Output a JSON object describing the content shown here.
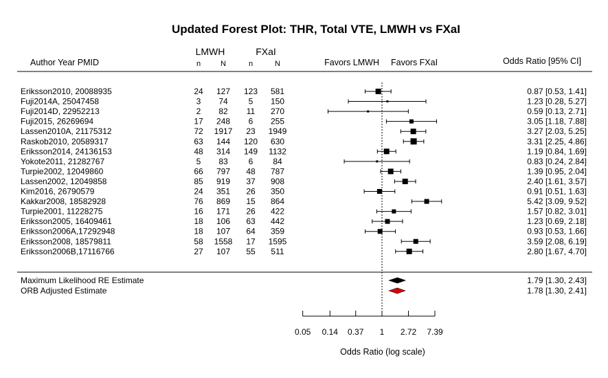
{
  "chart_data": {
    "type": "forest",
    "title": "Updated Forest Plot: THR, Total VTE, LMWH vs FXaI",
    "header": {
      "study_col": "Author Year PMID",
      "group1": "LMWH",
      "group2": "FXaI",
      "n_label": "n",
      "N_label": "N",
      "favors_left": "Favors LMWH",
      "favors_right": "Favors FXaI",
      "effect_col": "Odds Ratio [95% CI]"
    },
    "x_scale": "log",
    "xlabel": "Odds Ratio (log scale)",
    "x_ticks": [
      {
        "value": 0.05,
        "label": "0.05"
      },
      {
        "value": 0.14,
        "label": "0.14"
      },
      {
        "value": 0.37,
        "label": "0.37"
      },
      {
        "value": 1,
        "label": "1"
      },
      {
        "value": 2.72,
        "label": "2.72"
      },
      {
        "value": 7.39,
        "label": "7.39"
      }
    ],
    "reference_line": 1,
    "studies": [
      {
        "label": "Eriksson2010, 20088935",
        "n1": "24",
        "N1": "127",
        "n2": "123",
        "N2": "581",
        "or": 0.87,
        "lo": 0.53,
        "hi": 1.41,
        "ci_text": "0.87 [0.53, 1.41]"
      },
      {
        "label": "Fuji2014A, 25047458",
        "n1": "3",
        "N1": "74",
        "n2": "5",
        "N2": "150",
        "or": 1.23,
        "lo": 0.28,
        "hi": 5.27,
        "ci_text": "1.23 [0.28, 5.27]"
      },
      {
        "label": "Fuji2014D, 22952213",
        "n1": "2",
        "N1": "82",
        "n2": "11",
        "N2": "270",
        "or": 0.59,
        "lo": 0.13,
        "hi": 2.71,
        "ci_text": "0.59 [0.13, 2.71]"
      },
      {
        "label": "Fuji2015, 26269694",
        "n1": "17",
        "N1": "248",
        "n2": "6",
        "N2": "255",
        "or": 3.05,
        "lo": 1.18,
        "hi": 7.88,
        "ci_text": "3.05 [1.18, 7.88]"
      },
      {
        "label": "Lassen2010A, 21175312",
        "n1": "72",
        "N1": "1917",
        "n2": "23",
        "N2": "1949",
        "or": 3.27,
        "lo": 2.03,
        "hi": 5.25,
        "ci_text": "3.27 [2.03, 5.25]"
      },
      {
        "label": "Raskob2010, 20589317",
        "n1": "63",
        "N1": "144",
        "n2": "120",
        "N2": "630",
        "or": 3.31,
        "lo": 2.25,
        "hi": 4.86,
        "ci_text": "3.31 [2.25, 4.86]"
      },
      {
        "label": "Eriksson2014, 24136153",
        "n1": "48",
        "N1": "314",
        "n2": "149",
        "N2": "1132",
        "or": 1.19,
        "lo": 0.84,
        "hi": 1.69,
        "ci_text": "1.19 [0.84, 1.69]"
      },
      {
        "label": "Yokote2011, 21282767",
        "n1": "5",
        "N1": "83",
        "n2": "6",
        "N2": "84",
        "or": 0.83,
        "lo": 0.24,
        "hi": 2.84,
        "ci_text": "0.83 [0.24, 2.84]"
      },
      {
        "label": "Turpie2002, 12049860",
        "n1": "66",
        "N1": "797",
        "n2": "48",
        "N2": "787",
        "or": 1.39,
        "lo": 0.95,
        "hi": 2.04,
        "ci_text": "1.39 [0.95, 2.04]"
      },
      {
        "label": "Lassen2002, 12049858",
        "n1": "85",
        "N1": "919",
        "n2": "37",
        "N2": "908",
        "or": 2.4,
        "lo": 1.61,
        "hi": 3.57,
        "ci_text": "2.40 [1.61, 3.57]"
      },
      {
        "label": "Kim2016, 26790579",
        "n1": "24",
        "N1": "351",
        "n2": "26",
        "N2": "350",
        "or": 0.91,
        "lo": 0.51,
        "hi": 1.63,
        "ci_text": "0.91 [0.51, 1.63]"
      },
      {
        "label": "Kakkar2008, 18582928",
        "n1": "76",
        "N1": "869",
        "n2": "15",
        "N2": "864",
        "or": 5.42,
        "lo": 3.09,
        "hi": 9.52,
        "ci_text": "5.42 [3.09, 9.52]"
      },
      {
        "label": "Turpie2001, 11228275",
        "n1": "16",
        "N1": "171",
        "n2": "26",
        "N2": "422",
        "or": 1.57,
        "lo": 0.82,
        "hi": 3.01,
        "ci_text": "1.57 [0.82, 3.01]"
      },
      {
        "label": "Eriksson2005, 16409461",
        "n1": "18",
        "N1": "106",
        "n2": "63",
        "N2": "442",
        "or": 1.23,
        "lo": 0.69,
        "hi": 2.18,
        "ci_text": "1.23 [0.69, 2.18]"
      },
      {
        "label": "Eriksson2006A,17292948",
        "n1": "18",
        "N1": "107",
        "n2": "64",
        "N2": "359",
        "or": 0.93,
        "lo": 0.53,
        "hi": 1.66,
        "ci_text": "0.93 [0.53, 1.66]"
      },
      {
        "label": "Eriksson2008, 18579811",
        "n1": "58",
        "N1": "1558",
        "n2": "17",
        "N2": "1595",
        "or": 3.59,
        "lo": 2.08,
        "hi": 6.19,
        "ci_text": "3.59 [2.08, 6.19]"
      },
      {
        "label": "Eriksson2006B,17116766",
        "n1": "27",
        "N1": "107",
        "n2": "55",
        "N2": "511",
        "or": 2.8,
        "lo": 1.67,
        "hi": 4.7,
        "ci_text": "2.80 [1.67, 4.70]"
      }
    ],
    "summaries": [
      {
        "label": "Maximum Likelihood RE Estimate",
        "or": 1.79,
        "lo": 1.3,
        "hi": 2.43,
        "ci_text": "1.79 [1.30, 2.43]",
        "color": "#000000"
      },
      {
        "label": "ORB Adjusted Estimate",
        "or": 1.78,
        "lo": 1.3,
        "hi": 2.41,
        "ci_text": "1.78 [1.30, 2.41]",
        "color": "#e00000"
      }
    ]
  }
}
